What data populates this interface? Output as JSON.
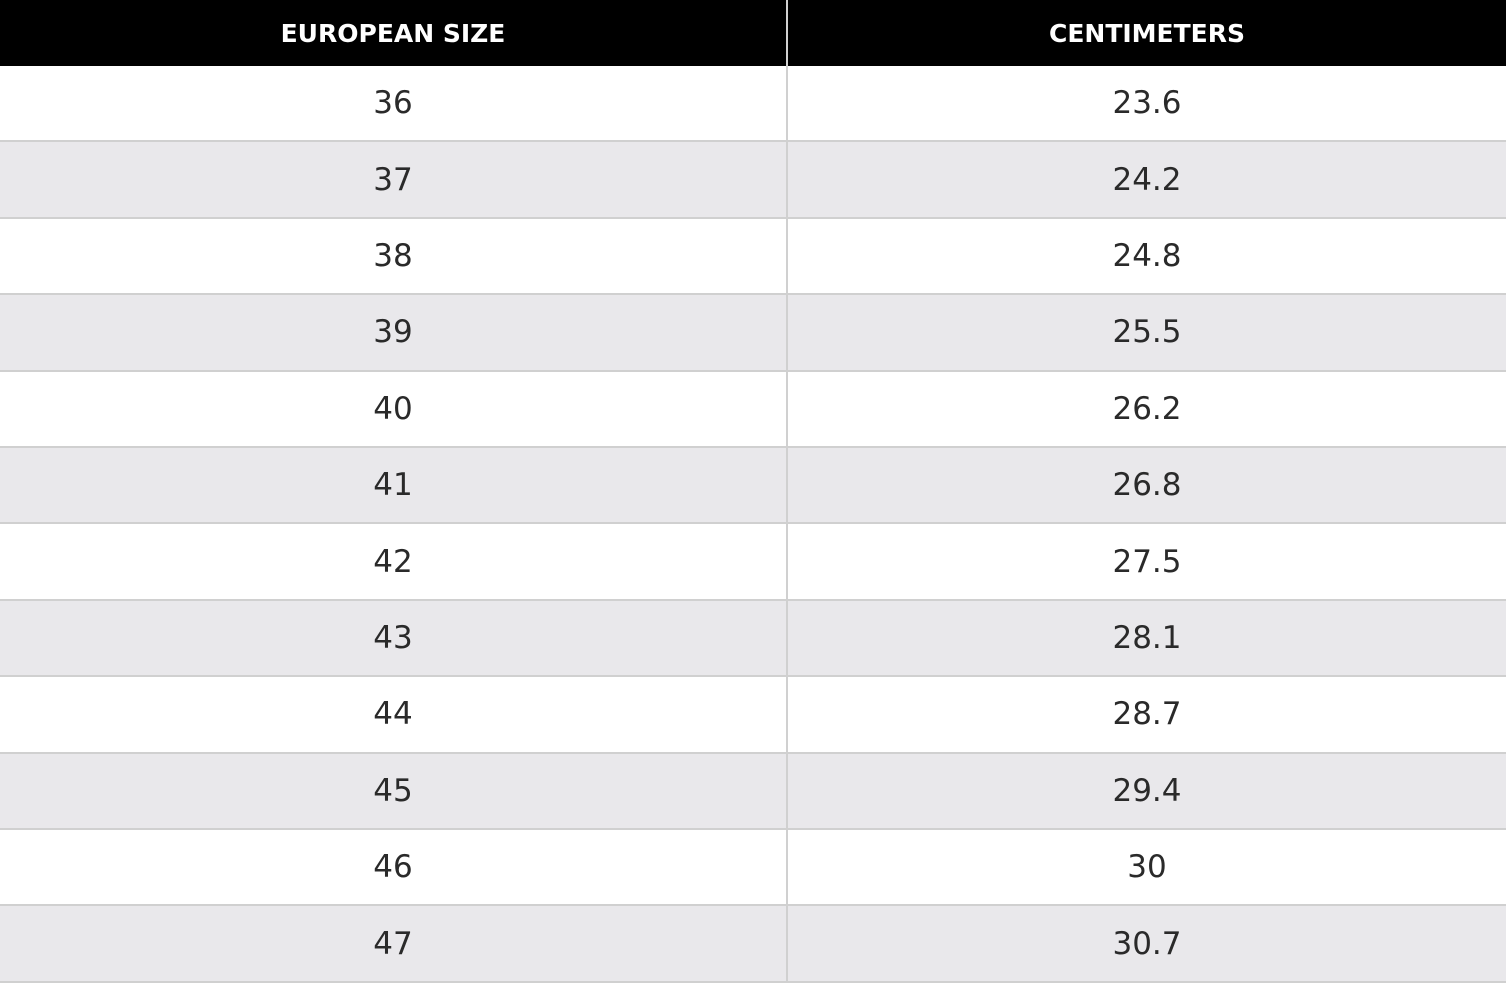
{
  "table": {
    "header": [
      "EUROPEAN SIZE",
      "CENTIMETERS"
    ],
    "rows": [
      [
        "36",
        "23.6"
      ],
      [
        "37",
        "24.2"
      ],
      [
        "38",
        "24.8"
      ],
      [
        "39",
        "25.5"
      ],
      [
        "40",
        "26.2"
      ],
      [
        "41",
        "26.8"
      ],
      [
        "42",
        "27.5"
      ],
      [
        "43",
        "28.1"
      ],
      [
        "44",
        "28.7"
      ],
      [
        "45",
        "29.4"
      ],
      [
        "46",
        "30"
      ],
      [
        "47",
        "30.7"
      ]
    ]
  }
}
